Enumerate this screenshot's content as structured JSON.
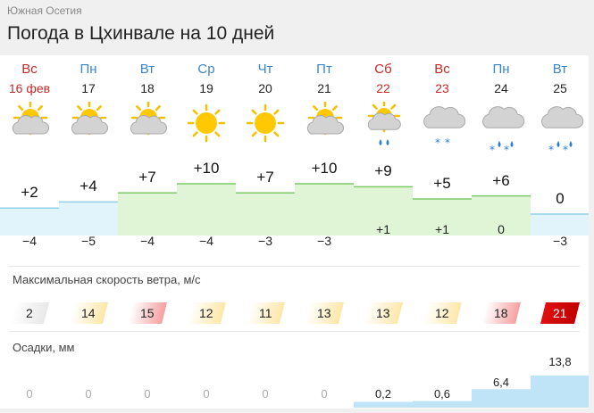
{
  "breadcrumb": "Южная Осетия",
  "title": "Погода в Цхинвале на 10 дней",
  "wind_label": "Максимальная скорость ветра, м/с",
  "precip_label": "Осадки, мм",
  "colors": {
    "weekday": "#3a86c8",
    "weekend": "#c62828",
    "warm_band": "#dff5d6",
    "cold_band": "#e2f4fb",
    "precip": "#bfe3f7"
  },
  "days": [
    {
      "dow": "Вс",
      "date": "16 фев",
      "weekend": true,
      "icon": "sun-cloud-icon",
      "max": "+2",
      "min": "−4",
      "max_val": 2,
      "wind": "2",
      "wind_level": 0,
      "precip": "0",
      "precip_val": 0
    },
    {
      "dow": "Пн",
      "date": "17",
      "weekend": false,
      "icon": "sun-cloud-icon",
      "max": "+4",
      "min": "−5",
      "max_val": 4,
      "wind": "14",
      "wind_level": 1,
      "precip": "0",
      "precip_val": 0
    },
    {
      "dow": "Вт",
      "date": "18",
      "weekend": false,
      "icon": "sun-cloud-icon",
      "max": "+7",
      "min": "−4",
      "max_val": 7,
      "wind": "15",
      "wind_level": 2,
      "precip": "0",
      "precip_val": 0
    },
    {
      "dow": "Ср",
      "date": "19",
      "weekend": false,
      "icon": "sun-icon",
      "max": "+10",
      "min": "−4",
      "max_val": 10,
      "wind": "12",
      "wind_level": 1,
      "precip": "0",
      "precip_val": 0
    },
    {
      "dow": "Чт",
      "date": "20",
      "weekend": false,
      "icon": "sun-icon",
      "max": "+7",
      "min": "−3",
      "max_val": 7,
      "wind": "11",
      "wind_level": 1,
      "precip": "0",
      "precip_val": 0
    },
    {
      "dow": "Пт",
      "date": "21",
      "weekend": false,
      "icon": "sun-cloud-icon",
      "max": "+10",
      "min": "−3",
      "max_val": 10,
      "wind": "13",
      "wind_level": 1,
      "precip": "0",
      "precip_val": 0
    },
    {
      "dow": "Сб",
      "date": "22",
      "weekend": true,
      "icon": "sun-cloud-rain-icon",
      "max": "+9",
      "min": "+1",
      "max_val": 9,
      "wind": "13",
      "wind_level": 1,
      "precip": "0,2",
      "precip_val": 0.2
    },
    {
      "dow": "Вс",
      "date": "23",
      "weekend": true,
      "icon": "cloud-snow-icon",
      "max": "+5",
      "min": "+1",
      "max_val": 5,
      "wind": "12",
      "wind_level": 1,
      "precip": "0,6",
      "precip_val": 0.6
    },
    {
      "dow": "Пн",
      "date": "24",
      "weekend": false,
      "icon": "cloud-rain-snow-icon",
      "max": "+6",
      "min": "0",
      "max_val": 6,
      "wind": "18",
      "wind_level": 2,
      "precip": "6,4",
      "precip_val": 6.4
    },
    {
      "dow": "Вт",
      "date": "25",
      "weekend": false,
      "icon": "cloud-rain-snow-icon",
      "max": "0",
      "min": "−3",
      "max_val": 0,
      "wind": "21",
      "wind_level": 3,
      "precip": "13,8",
      "precip_val": 13.8
    }
  ]
}
